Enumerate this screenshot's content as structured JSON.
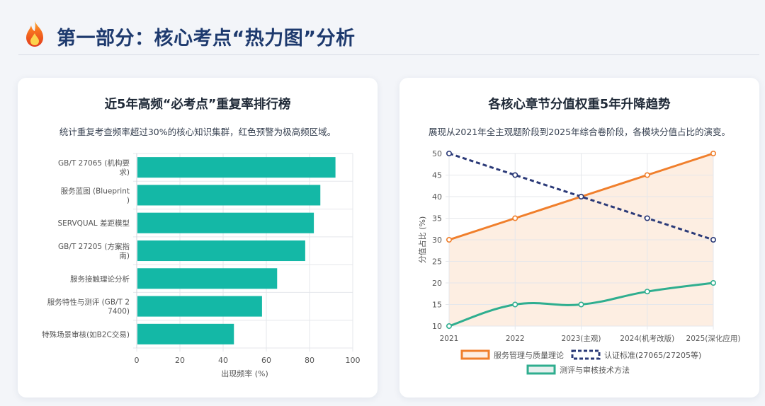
{
  "header": {
    "title": "第一部分：核心考点“热力图”分析",
    "icon": "fire-icon"
  },
  "cards": {
    "left": {
      "title": "近5年高频“必考点”重复率排行榜",
      "subtitle": "统计重复考查频率超过30%的核心知识集群，红色预警为极高频区域。"
    },
    "right": {
      "title": "各核心章节分值权重5年升降趋势",
      "subtitle": "展现从2021年全主观题阶段到2025年综合卷阶段，各模块分值占比的演变。"
    }
  },
  "chart_data": [
    {
      "type": "bar",
      "orientation": "horizontal",
      "categories": [
        [
          "GB/T 27065 (机构要",
          "求)"
        ],
        [
          "服务蓝图 (Blueprint",
          ")"
        ],
        [
          "SERVQUAL 差距模型"
        ],
        [
          "GB/T 27205 (方案指",
          "南)"
        ],
        [
          "服务接触理论分析"
        ],
        [
          "服务特性与测评 (GB/T 2",
          "7400)"
        ],
        [
          "特殊场景审核(如B2C交易)"
        ]
      ],
      "values": [
        92,
        85,
        82,
        78,
        65,
        58,
        45
      ],
      "xlabel": "出现频率 (%)",
      "xlim": [
        0,
        100
      ],
      "xticks": [
        0,
        20,
        40,
        60,
        80,
        100
      ],
      "bar_color": "#14b8a6"
    },
    {
      "type": "line",
      "x": [
        "2021",
        "2022",
        "2023(主观)",
        "2024(机考改版)",
        "2025(深化应用)"
      ],
      "ylabel": "分值占比 (%)",
      "ylim": [
        10,
        50
      ],
      "yticks": [
        10,
        15,
        20,
        25,
        30,
        35,
        40,
        45,
        50
      ],
      "series": [
        {
          "name": "服务管理与质量理论",
          "values": [
            30,
            35,
            40,
            45,
            50
          ],
          "color": "#f07f2c",
          "style": "solid",
          "fill": "#fdeee2"
        },
        {
          "name": "认证标准(27065/27205等)",
          "values": [
            50,
            45,
            40,
            35,
            30
          ],
          "color": "#2b3a78",
          "style": "dashed"
        },
        {
          "name": "测评与审核技术方法",
          "values": [
            10,
            15,
            15,
            18,
            20
          ],
          "color": "#2fae8f",
          "style": "smooth"
        }
      ],
      "legend_position": "bottom"
    }
  ]
}
